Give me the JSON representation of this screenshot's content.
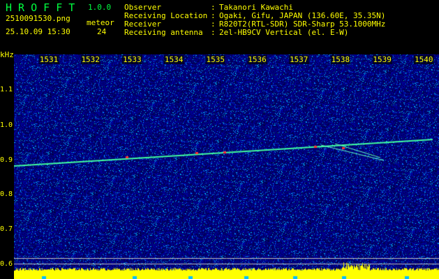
{
  "app": {
    "name": "H R O F F T",
    "version": "1.0.0"
  },
  "file": "2510091530.png",
  "datetime": "25.10.09 15:30",
  "meteor": {
    "label": "meteor",
    "count": "24"
  },
  "info": [
    {
      "label": "Observer",
      "value": "Takanori Kawachi"
    },
    {
      "label": "Receiving Location",
      "value": "Ogaki, Gifu, JAPAN (136.60E, 35.35N)"
    },
    {
      "label": "Receiver",
      "value": "R820T2(RTL-SDR) SDR-Sharp 53.1000MHz"
    },
    {
      "label": "Receiving antenna",
      "value": "2el-HB9CV Vertical (el. E-W)"
    }
  ],
  "axis": {
    "y_unit": "kHz",
    "y_ticks": [
      "1.1",
      "1.0",
      "0.9",
      "0.8",
      "0.7",
      "0.6"
    ],
    "x_ticks": [
      "1531",
      "1532",
      "1533",
      "1534",
      "1535",
      "1536",
      "1537",
      "1538",
      "1539",
      "1540"
    ]
  },
  "colors": {
    "text": "#ffff00",
    "title": "#00ff40",
    "background": "#000080",
    "signal": "#00ff80",
    "floor": "#ffff00"
  }
}
